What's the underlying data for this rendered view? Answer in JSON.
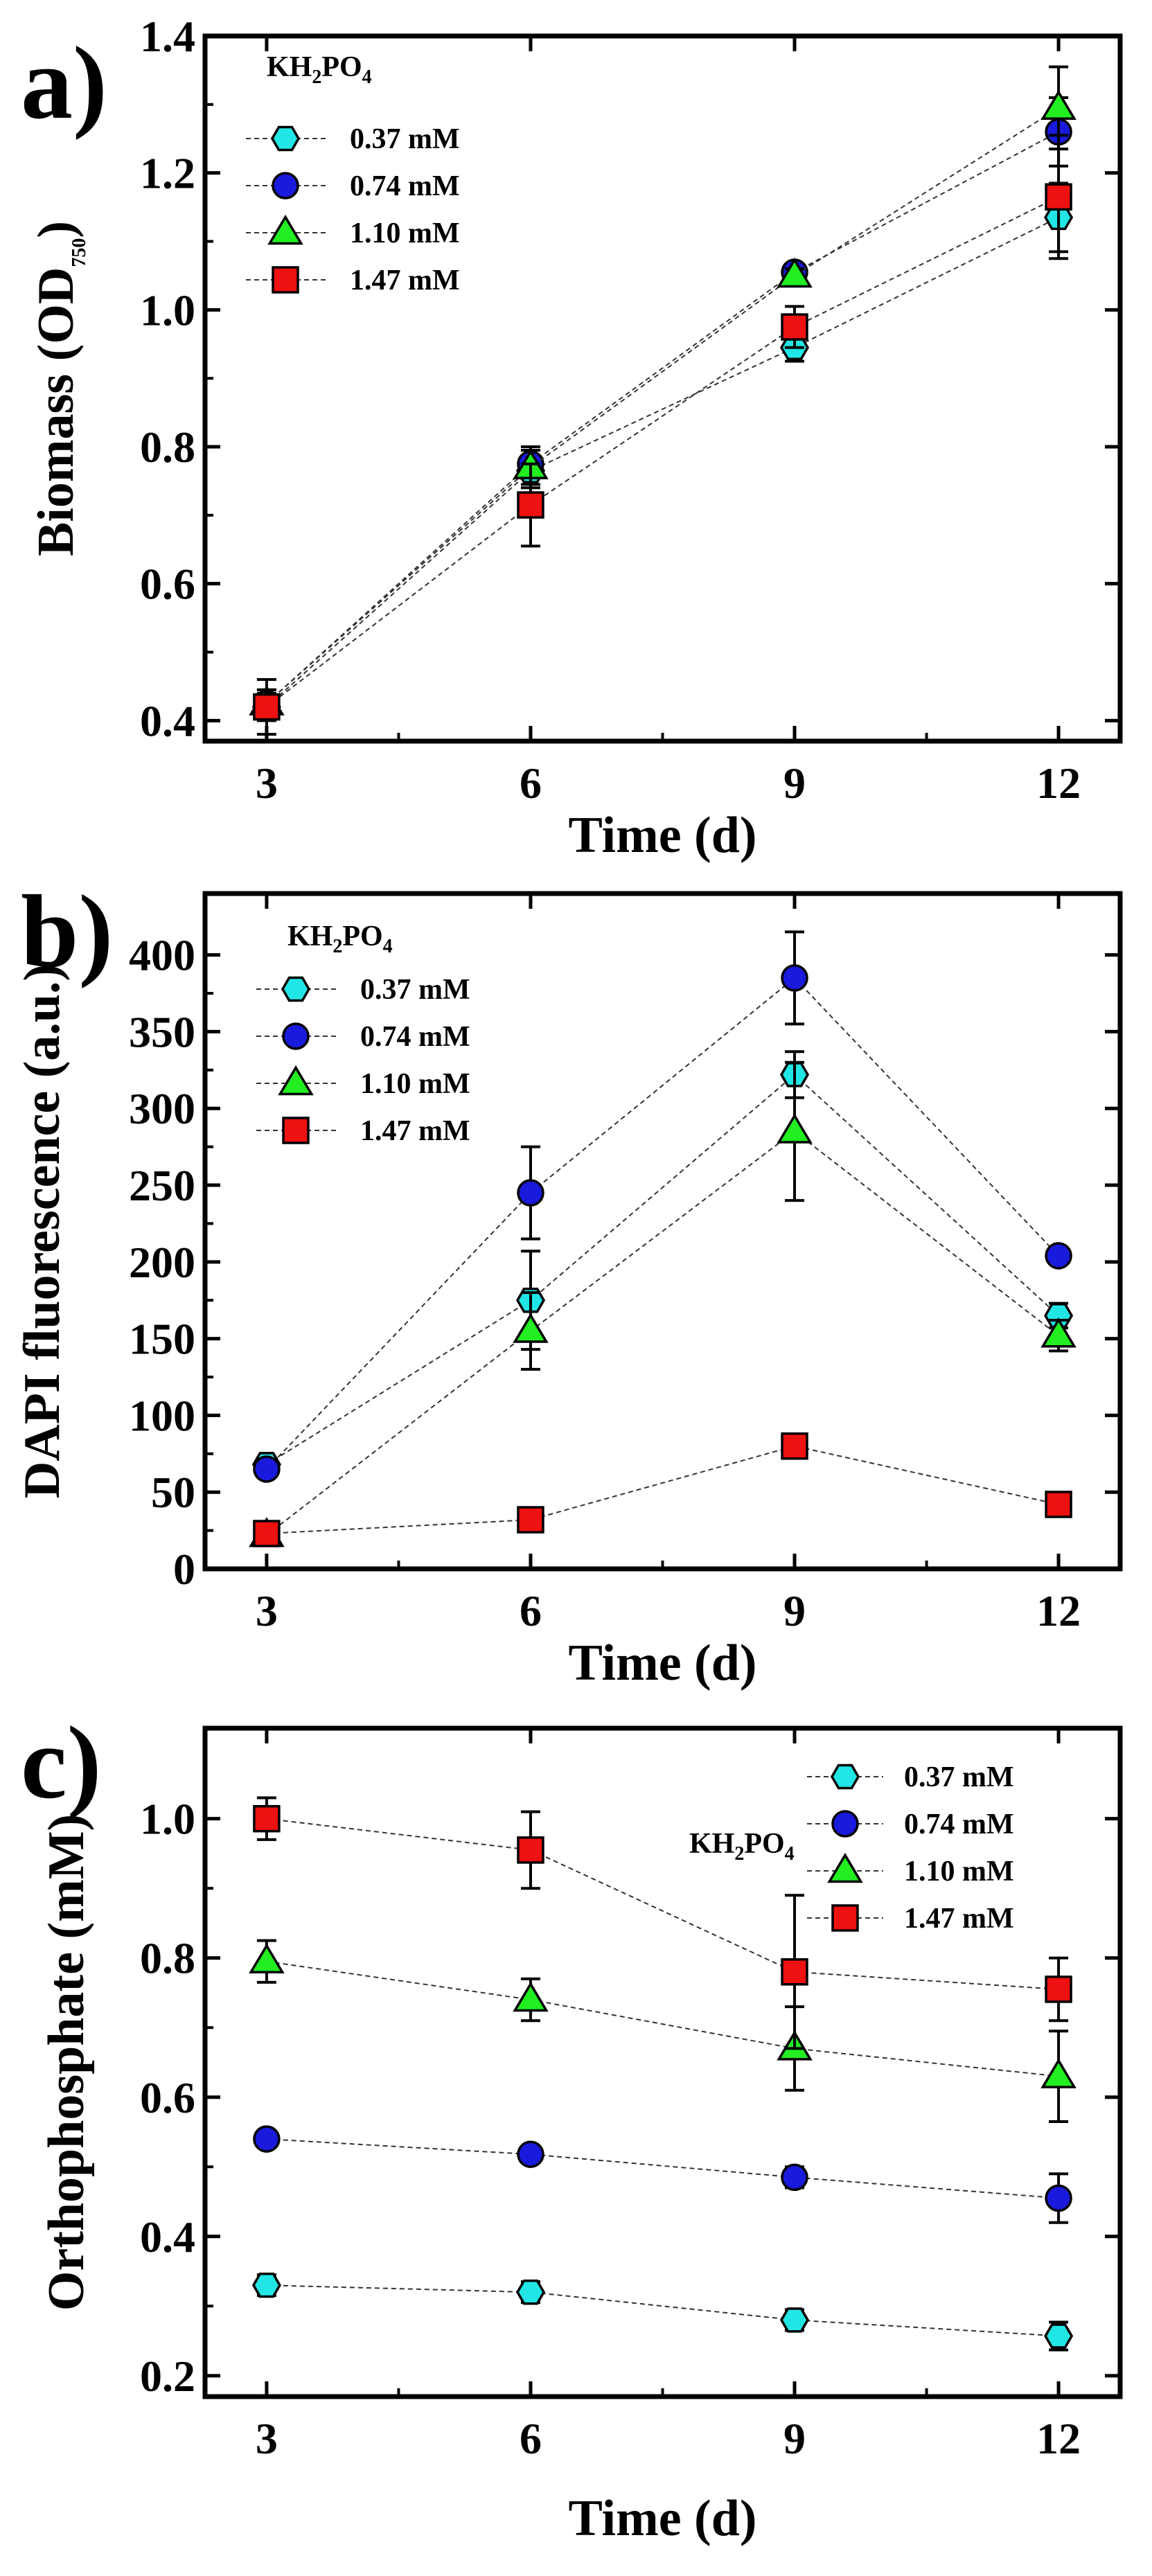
{
  "chart_data": [
    {
      "type": "line",
      "panel_label": "a)",
      "title": "",
      "xlabel": "Time (d)",
      "ylabel_main": "Biomass (OD",
      "ylabel_sub": "750",
      "ylabel_end": ")",
      "x": [
        3,
        6,
        9,
        12
      ],
      "xticks": [
        "3",
        "6",
        "9",
        "12"
      ],
      "xlim": [
        2.3,
        12.7
      ],
      "ylim": [
        0.37,
        1.4
      ],
      "yticks": [
        "0.4",
        "0.6",
        "0.8",
        "1.0",
        "1.2",
        "1.4"
      ],
      "ytick_values": [
        0.4,
        0.6,
        0.8,
        1.0,
        1.2,
        1.4
      ],
      "legend_title_main": "KH",
      "legend_title_sub1": "2",
      "legend_title_mid": "PO",
      "legend_title_sub2": "4",
      "legend_position": "top-left",
      "series": [
        {
          "name": "0.37 mM",
          "marker": "hexagon",
          "color": "#22e6e6",
          "values": [
            0.42,
            0.765,
            0.945,
            1.135
          ],
          "errors": [
            0.02,
            0.02,
            0.02,
            0.05
          ]
        },
        {
          "name": "0.74 mM",
          "marker": "circle",
          "color": "#1a1adc",
          "values": [
            0.425,
            0.775,
            1.055,
            1.26
          ],
          "errors": [
            0.02,
            0.02,
            0.01,
            0.05
          ]
        },
        {
          "name": "1.10 mM",
          "marker": "triangle",
          "color": "#22ee22",
          "values": [
            0.425,
            0.77,
            1.05,
            1.295
          ],
          "errors": [
            0.02,
            0.03,
            0.01,
            0.06
          ]
        },
        {
          "name": "1.47 mM",
          "marker": "square",
          "color": "#ee1111",
          "values": [
            0.42,
            0.715,
            0.975,
            1.165
          ],
          "errors": [
            0.04,
            0.06,
            0.03,
            0.09
          ]
        }
      ]
    },
    {
      "type": "line",
      "panel_label": "b)",
      "title": "",
      "xlabel": "Time (d)",
      "ylabel_main": "DAPI fluorescence (a.u.)",
      "x": [
        3,
        6,
        9,
        12
      ],
      "xticks": [
        "3",
        "6",
        "9",
        "12"
      ],
      "xlim": [
        2.3,
        12.7
      ],
      "ylim": [
        0,
        440
      ],
      "yticks": [
        "0",
        "50",
        "100",
        "150",
        "200",
        "250",
        "300",
        "350",
        "400"
      ],
      "ytick_values": [
        0,
        50,
        100,
        150,
        200,
        250,
        300,
        350,
        400
      ],
      "legend_title_main": "KH",
      "legend_title_sub1": "2",
      "legend_title_mid": "PO",
      "legend_title_sub2": "4",
      "legend_position": "top-left",
      "series": [
        {
          "name": "0.37 mM",
          "marker": "hexagon",
          "color": "#22e6e6",
          "values": [
            68,
            175,
            322,
            165
          ],
          "errors": [
            5,
            32,
            15,
            8
          ]
        },
        {
          "name": "0.74 mM",
          "marker": "circle",
          "color": "#1a1adc",
          "values": [
            65,
            245,
            385,
            204
          ],
          "errors": [
            5,
            30,
            30,
            5
          ]
        },
        {
          "name": "1.10 mM",
          "marker": "triangle",
          "color": "#22ee22",
          "values": [
            22,
            155,
            285,
            152
          ],
          "errors": [
            5,
            25,
            45,
            10
          ]
        },
        {
          "name": "1.47 mM",
          "marker": "square",
          "color": "#ee1111",
          "values": [
            23,
            32,
            80,
            42
          ],
          "errors": [
            3,
            3,
            5,
            4
          ]
        }
      ]
    },
    {
      "type": "line",
      "panel_label": "c)",
      "title": "",
      "xlabel": "Time (d)",
      "ylabel_main": "Orthophosphate (mM)",
      "x": [
        3,
        6,
        9,
        12
      ],
      "xticks": [
        "3",
        "6",
        "9",
        "12"
      ],
      "xlim": [
        2.3,
        12.7
      ],
      "ylim": [
        0.17,
        1.13
      ],
      "yticks": [
        "0.2",
        "0.4",
        "0.6",
        "0.8",
        "1.0"
      ],
      "ytick_values": [
        0.2,
        0.4,
        0.6,
        0.8,
        1.0
      ],
      "legend_title_main": "KH",
      "legend_title_sub1": "2",
      "legend_title_mid": "PO",
      "legend_title_sub2": "4",
      "legend_position": "top-right",
      "series": [
        {
          "name": "0.37 mM",
          "marker": "hexagon",
          "color": "#22e6e6",
          "values": [
            0.33,
            0.32,
            0.28,
            0.257
          ],
          "errors": [
            0.015,
            0.015,
            0.015,
            0.02
          ]
        },
        {
          "name": "0.74 mM",
          "marker": "circle",
          "color": "#1a1adc",
          "values": [
            0.54,
            0.518,
            0.485,
            0.455
          ],
          "errors": [
            0.01,
            0.01,
            0.015,
            0.035
          ]
        },
        {
          "name": "1.10 mM",
          "marker": "triangle",
          "color": "#22ee22",
          "values": [
            0.795,
            0.74,
            0.67,
            0.63
          ],
          "errors": [
            0.03,
            0.03,
            0.06,
            0.065
          ]
        },
        {
          "name": "1.47 mM",
          "marker": "square",
          "color": "#ee1111",
          "values": [
            1.0,
            0.955,
            0.78,
            0.755
          ],
          "errors": [
            0.03,
            0.055,
            0.11,
            0.045
          ]
        }
      ]
    }
  ]
}
